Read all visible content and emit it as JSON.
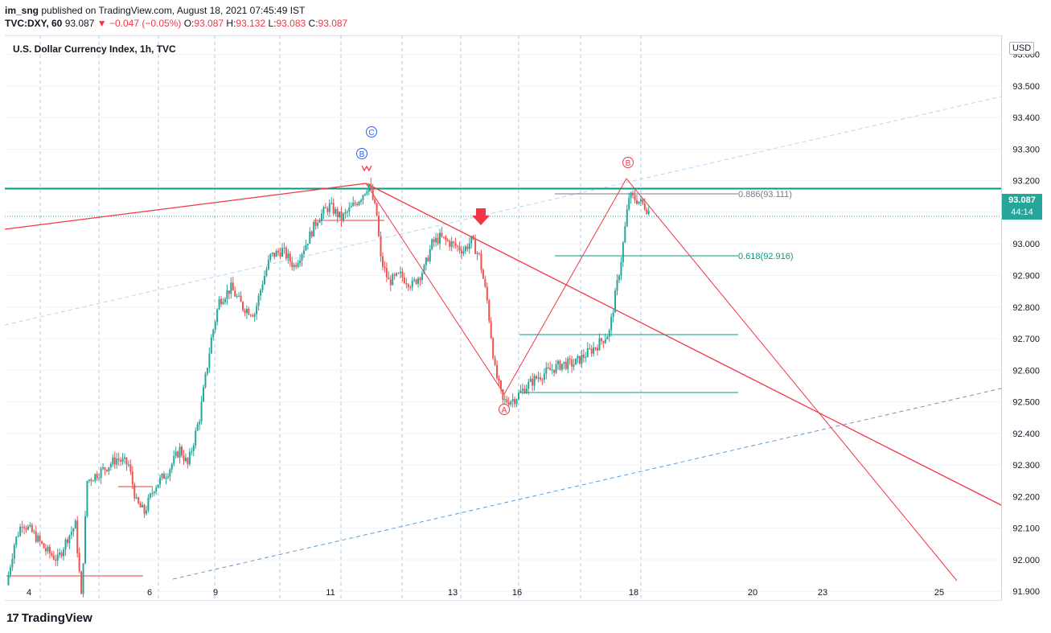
{
  "header": {
    "publisher": "im_sng",
    "published_text": "published on TradingView.com, August 18, 2021 07:45:49 IST",
    "symbol": "TVC:DXY, 60",
    "last": "93.087",
    "change": "▼ −0.047 (−0.05%)",
    "o_label": "O:",
    "o": "93.087",
    "h_label": "H:",
    "h": "93.132",
    "l_label": "L:",
    "l": "93.083",
    "c_label": "C:",
    "c": "93.087"
  },
  "title": "U.S. Dollar Currency Index, 1h, TVC",
  "currency": "USD",
  "price_tag": {
    "value": "93.087",
    "countdown": "44:14"
  },
  "footer": {
    "logo_mark": "17",
    "logo_text": "TradingView"
  },
  "colors": {
    "up": "#26a69a",
    "down": "#ef5350",
    "pattern": "#f23645",
    "fib": "#089981",
    "wave_blue": "#2962ff",
    "trend_dash": "#5b9bd5"
  },
  "chart_data": {
    "type": "candlestick",
    "title": "U.S. Dollar Currency Index, 1h, TVC",
    "x_ticks": [
      "4",
      "6",
      "9",
      "11",
      "13",
      "16",
      "18",
      "20",
      "23",
      "25"
    ],
    "y_ticks": [
      "91.900",
      "92.000",
      "92.100",
      "92.200",
      "92.300",
      "92.400",
      "92.500",
      "92.600",
      "92.700",
      "92.800",
      "92.900",
      "93.000",
      "93.100",
      "93.200",
      "93.300",
      "93.400",
      "93.500",
      "93.600"
    ],
    "ylim": [
      91.87,
      93.66
    ],
    "grid": true,
    "price_path": [
      [
        0,
        91.92
      ],
      [
        4,
        92.05
      ],
      [
        8,
        92.12
      ],
      [
        14,
        92.08
      ],
      [
        20,
        92.03
      ],
      [
        26,
        92.0
      ],
      [
        31,
        92.07
      ],
      [
        35,
        92.11
      ],
      [
        38,
        91.88
      ],
      [
        41,
        92.25
      ],
      [
        48,
        92.28
      ],
      [
        56,
        92.32
      ],
      [
        62,
        92.3
      ],
      [
        66,
        92.18
      ],
      [
        70,
        92.15
      ],
      [
        75,
        92.23
      ],
      [
        82,
        92.28
      ],
      [
        88,
        92.35
      ],
      [
        92,
        92.3
      ],
      [
        98,
        92.45
      ],
      [
        104,
        92.7
      ],
      [
        108,
        92.82
      ],
      [
        114,
        92.86
      ],
      [
        120,
        92.8
      ],
      [
        126,
        92.78
      ],
      [
        130,
        92.88
      ],
      [
        134,
        92.96
      ],
      [
        140,
        92.98
      ],
      [
        146,
        92.93
      ],
      [
        152,
        93.0
      ],
      [
        158,
        93.08
      ],
      [
        164,
        93.12
      ],
      [
        170,
        93.08
      ],
      [
        176,
        93.12
      ],
      [
        180,
        93.15
      ],
      [
        184,
        93.19
      ],
      [
        188,
        93.09
      ],
      [
        190,
        92.95
      ],
      [
        194,
        92.88
      ],
      [
        200,
        92.9
      ],
      [
        206,
        92.87
      ],
      [
        212,
        92.92
      ],
      [
        216,
        93.0
      ],
      [
        220,
        93.02
      ],
      [
        226,
        93.0
      ],
      [
        232,
        92.98
      ],
      [
        236,
        93.01
      ],
      [
        240,
        92.96
      ],
      [
        244,
        92.82
      ],
      [
        248,
        92.6
      ],
      [
        252,
        92.5
      ],
      [
        258,
        92.51
      ],
      [
        264,
        92.55
      ],
      [
        270,
        92.58
      ],
      [
        276,
        92.6
      ],
      [
        282,
        92.62
      ],
      [
        288,
        92.62
      ],
      [
        294,
        92.65
      ],
      [
        300,
        92.68
      ],
      [
        306,
        92.72
      ],
      [
        312,
        92.95
      ],
      [
        316,
        93.15
      ],
      [
        320,
        93.14
      ],
      [
        324,
        93.12
      ],
      [
        328,
        93.087
      ]
    ],
    "annotations": {
      "waves": [
        {
          "label": "C",
          "price": 93.33,
          "t": 181,
          "color": "blue"
        },
        {
          "label": "B",
          "price": 93.24,
          "t": 176,
          "color": "blue"
        },
        {
          "label": "A",
          "price": 92.45,
          "t": 260,
          "color": "red"
        },
        {
          "label": "B",
          "price": 93.21,
          "t": 325,
          "color": "red"
        }
      ],
      "fib": [
        {
          "text": "0.886(93.111)",
          "price": 93.111
        },
        {
          "text": "0.618(92.916)",
          "price": 92.916
        }
      ],
      "horizontal_resistance": 93.175
    }
  }
}
